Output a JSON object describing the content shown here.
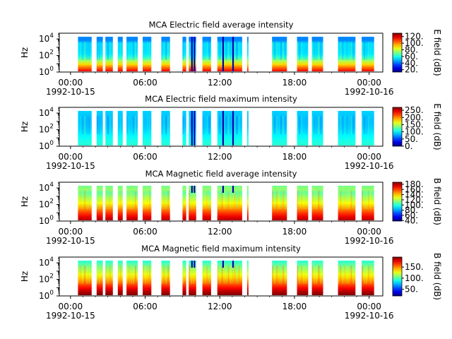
{
  "figure": {
    "x_axis": {
      "ticks": [
        {
          "hours": 0,
          "label": "00:00",
          "sublabel": "1992-10-15"
        },
        {
          "hours": 6,
          "label": "06:00",
          "sublabel": ""
        },
        {
          "hours": 12,
          "label": "12:00",
          "sublabel": ""
        },
        {
          "hours": 18,
          "label": "18:00",
          "sublabel": ""
        },
        {
          "hours": 24,
          "label": "00:00",
          "sublabel": "1992-10-16"
        }
      ],
      "range_hours": [
        -0.9,
        25.1
      ]
    }
  },
  "chart_data": [
    {
      "type": "heatmap",
      "title": "MCA  Electric field average intensity",
      "ylabel": "Hz",
      "y_scale": "log",
      "y_ticks": [
        "10^4",
        "10^2",
        "10^0"
      ],
      "ylim_log10": [
        0,
        4.7
      ],
      "colorbar": {
        "label": "E field (dB)",
        "range": [
          13,
          130
        ],
        "ticks": [
          "120.",
          "100.",
          "80.",
          "60.",
          "40.",
          "20."
        ]
      },
      "intervals_hours": [
        [
          0.6,
          1.7
        ],
        [
          2.1,
          2.6
        ],
        [
          2.8,
          3.4
        ],
        [
          3.8,
          4.2
        ],
        [
          4.5,
          5.4
        ],
        [
          5.8,
          6.5
        ],
        [
          7.3,
          8.0
        ],
        [
          9.0,
          9.3
        ],
        [
          9.5,
          10.1
        ],
        [
          10.6,
          11.3
        ],
        [
          11.8,
          13.8
        ],
        [
          14.2,
          14.3
        ],
        [
          16.2,
          17.4
        ],
        [
          18.2,
          19.1
        ],
        [
          19.4,
          20.3
        ],
        [
          21.5,
          22.9
        ],
        [
          23.4,
          24.4
        ]
      ],
      "spikes_hours": [
        9.7,
        9.9,
        12.2,
        13.0
      ],
      "value_profile": "avg_e"
    },
    {
      "type": "heatmap",
      "title": "MCA  Electric field maximum intensity",
      "ylabel": "Hz",
      "y_scale": "log",
      "y_ticks": [
        "10^4",
        "10^2",
        "10^0"
      ],
      "ylim_log10": [
        0,
        4.7
      ],
      "colorbar": {
        "label": "E field (dB)",
        "range": [
          0,
          270
        ],
        "ticks": [
          "250.",
          "200.",
          "150.",
          "100.",
          "50.",
          "0."
        ]
      },
      "intervals_hours": [
        [
          0.6,
          1.7
        ],
        [
          2.1,
          2.6
        ],
        [
          2.8,
          3.4
        ],
        [
          3.8,
          4.2
        ],
        [
          4.5,
          5.4
        ],
        [
          5.8,
          6.5
        ],
        [
          7.3,
          8.0
        ],
        [
          9.0,
          9.3
        ],
        [
          9.5,
          10.1
        ],
        [
          10.6,
          11.3
        ],
        [
          11.8,
          13.8
        ],
        [
          14.2,
          14.3
        ],
        [
          16.2,
          17.4
        ],
        [
          18.2,
          19.1
        ],
        [
          19.4,
          20.3
        ],
        [
          21.5,
          22.9
        ],
        [
          23.4,
          24.4
        ]
      ],
      "spikes_hours": [
        9.7,
        9.9,
        12.2,
        13.0
      ],
      "value_profile": "max_e"
    },
    {
      "type": "heatmap",
      "title": "MCA  Magnetic field average intensity",
      "ylabel": "Hz",
      "y_scale": "log",
      "y_ticks": [
        "10^4",
        "10^2",
        "10^0"
      ],
      "ylim_log10": [
        0,
        4.7
      ],
      "colorbar": {
        "label": "B field (dB)",
        "range": [
          38,
          188
        ],
        "ticks": [
          "180.",
          "160.",
          "140.",
          "120.",
          "100.",
          "80.",
          "60.",
          "40."
        ]
      },
      "intervals_hours": [
        [
          0.6,
          1.7
        ],
        [
          2.1,
          2.6
        ],
        [
          2.8,
          3.4
        ],
        [
          3.8,
          4.2
        ],
        [
          4.5,
          5.4
        ],
        [
          5.8,
          6.5
        ],
        [
          7.3,
          8.0
        ],
        [
          9.0,
          9.3
        ],
        [
          9.5,
          10.1
        ],
        [
          10.6,
          11.3
        ],
        [
          11.8,
          13.8
        ],
        [
          14.2,
          14.3
        ],
        [
          16.2,
          17.4
        ],
        [
          18.2,
          19.1
        ],
        [
          19.4,
          20.3
        ],
        [
          21.5,
          22.9
        ],
        [
          23.4,
          24.4
        ]
      ],
      "spikes_hours": [
        9.7,
        9.9,
        12.2,
        13.0
      ],
      "value_profile": "avg_b"
    },
    {
      "type": "heatmap",
      "title": "MCA  Magnetic field maximum intensity",
      "ylabel": "Hz",
      "y_scale": "log",
      "y_ticks": [
        "10^4",
        "10^2",
        "10^0"
      ],
      "ylim_log10": [
        0,
        4.7
      ],
      "colorbar": {
        "label": "B field (dB)",
        "range": [
          20,
          195
        ],
        "ticks": [
          "150.",
          "100.",
          "50."
        ]
      },
      "intervals_hours": [
        [
          0.6,
          1.7
        ],
        [
          2.1,
          2.6
        ],
        [
          2.8,
          3.4
        ],
        [
          3.8,
          4.2
        ],
        [
          4.5,
          5.4
        ],
        [
          5.8,
          6.5
        ],
        [
          7.3,
          8.0
        ],
        [
          9.0,
          9.3
        ],
        [
          9.5,
          10.1
        ],
        [
          10.6,
          11.3
        ],
        [
          11.8,
          13.8
        ],
        [
          14.2,
          14.3
        ],
        [
          16.2,
          17.4
        ],
        [
          18.2,
          19.1
        ],
        [
          19.4,
          20.3
        ],
        [
          21.5,
          22.9
        ],
        [
          23.4,
          24.4
        ]
      ],
      "spikes_hours": [
        9.7,
        9.9,
        12.2,
        13.0
      ],
      "value_profile": "max_b"
    }
  ]
}
